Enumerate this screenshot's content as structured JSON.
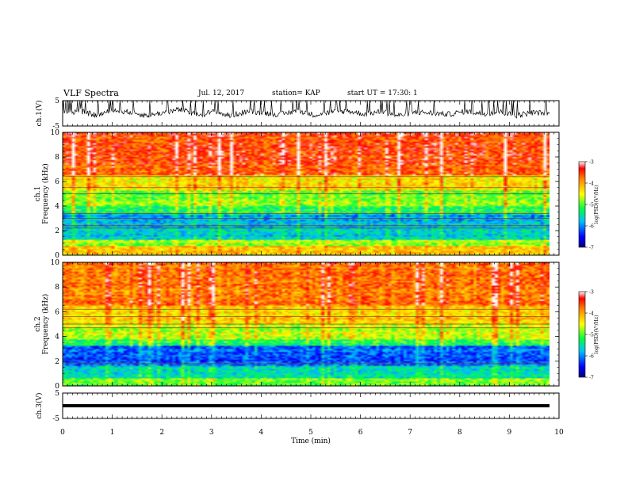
{
  "header": {
    "title": "VLF Spectra",
    "date": "Jul. 12, 2017",
    "station": "station= KAP",
    "start": "start UT = 17:30: 1"
  },
  "chart_data": [
    {
      "type": "line",
      "panel": "ch1-waveform",
      "ylabel": "ch.1(V)",
      "ylim": [
        -5,
        5
      ],
      "yticks": [
        "5",
        "-5"
      ],
      "xlim": [
        0,
        10
      ],
      "series": [
        {
          "values": [
            0.2,
            0.9,
            -0.8,
            1.2,
            0.5,
            -0.9,
            0.3,
            1.5,
            -0.7,
            0.6,
            -1.0,
            0.8,
            0.2,
            -0.5,
            1.1,
            -0.6,
            0.4,
            0.9,
            -0.3,
            0.7,
            -0.9,
            0.5,
            0.1,
            -0.4,
            0.8,
            -0.2,
            0.6,
            -0.8,
            0.3,
            0.1
          ]
        }
      ],
      "notes": "noisy waveform, mostly between -2 and +3 V with frequent spikes to the +5 V limit"
    },
    {
      "type": "heatmap",
      "panel": "ch1-spectrogram",
      "ylabel": "ch.1 Frequency (kHz)",
      "ylim": [
        0,
        10
      ],
      "yticks": [
        "0",
        "2",
        "4",
        "6",
        "8",
        "10"
      ],
      "xlim": [
        0,
        9.8
      ],
      "colorbar": {
        "label": "log(PSD)(V²/Hz)",
        "ticks": [
          "-3",
          "-4",
          "-5",
          "-6",
          "-7"
        ],
        "range": [
          -7,
          -3
        ]
      },
      "bands": [
        {
          "from": 0.0,
          "to": 0.8,
          "level": -4.3
        },
        {
          "from": 0.8,
          "to": 1.3,
          "level": -4.8
        },
        {
          "from": 1.3,
          "to": 2.6,
          "level": -5.7
        },
        {
          "from": 2.6,
          "to": 3.4,
          "level": -5.9
        },
        {
          "from": 3.4,
          "to": 4.0,
          "level": -5.2
        },
        {
          "from": 4.0,
          "to": 5.2,
          "level": -4.9
        },
        {
          "from": 5.2,
          "to": 6.5,
          "level": -4.4
        },
        {
          "from": 6.5,
          "to": 10.0,
          "level": -3.6
        }
      ],
      "lines_khz": [
        2.2,
        2.4,
        3.0,
        3.4,
        5.0,
        5.5,
        6.4
      ]
    },
    {
      "type": "heatmap",
      "panel": "ch2-spectrogram",
      "ylabel": "ch.2 Frequency (kHz)",
      "ylim": [
        0,
        10
      ],
      "yticks": [
        "0",
        "2",
        "4",
        "6",
        "8",
        "10"
      ],
      "xlim": [
        0,
        9.8
      ],
      "colorbar": {
        "label": "log(PSD)(V²/Hz)",
        "ticks": [
          "-3",
          "-4",
          "-5",
          "-6",
          "-7"
        ],
        "range": [
          -7,
          -3
        ]
      },
      "bands": [
        {
          "from": 0.0,
          "to": 0.6,
          "level": -5.0
        },
        {
          "from": 0.6,
          "to": 1.6,
          "level": -5.6
        },
        {
          "from": 1.6,
          "to": 3.2,
          "level": -6.2
        },
        {
          "from": 3.2,
          "to": 3.8,
          "level": -5.2
        },
        {
          "from": 3.8,
          "to": 5.0,
          "level": -4.7
        },
        {
          "from": 5.0,
          "to": 6.5,
          "level": -4.3
        },
        {
          "from": 6.5,
          "to": 10.0,
          "level": -3.8
        }
      ],
      "lines_khz": [
        1.8,
        4.7,
        5.0,
        5.6,
        6.2
      ]
    },
    {
      "type": "line",
      "panel": "ch3-waveform",
      "ylabel": "ch.3(V)",
      "ylim": [
        -5,
        5
      ],
      "yticks": [
        "5",
        "-5"
      ],
      "xlim": [
        0,
        10
      ],
      "series": [
        {
          "values": [
            0.0,
            0.0
          ]
        }
      ],
      "notes": "flat thick line near 0 V"
    }
  ],
  "xaxis": {
    "label": "Time (min)",
    "ticks": [
      "0",
      "1",
      "2",
      "3",
      "4",
      "5",
      "6",
      "7",
      "8",
      "9",
      "10"
    ],
    "range": [
      0,
      10
    ]
  },
  "colors": {
    "frame": "#000000",
    "background": "#ffffff"
  }
}
